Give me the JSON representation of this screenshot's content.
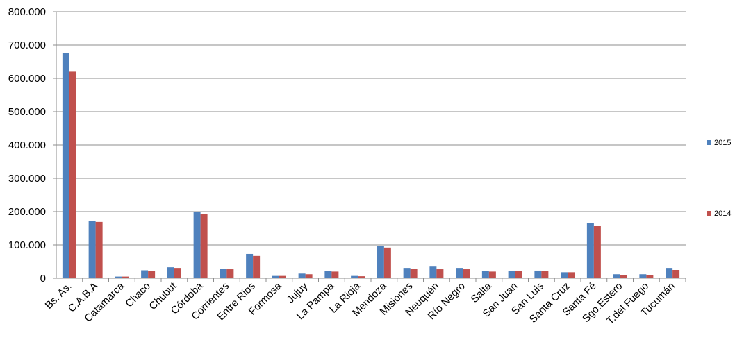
{
  "chart_data": {
    "type": "bar",
    "title": "",
    "xlabel": "",
    "ylabel": "",
    "ylim": [
      0,
      800000
    ],
    "y_ticks": [
      0,
      100000,
      200000,
      300000,
      400000,
      500000,
      600000,
      700000,
      800000
    ],
    "y_tick_labels": [
      "0",
      "100.000",
      "200.000",
      "300.000",
      "400.000",
      "500.000",
      "600.000",
      "700.000",
      "800.000"
    ],
    "grid": true,
    "legend_position": "right",
    "categories": [
      "Bs. As.",
      "C.A.B.A",
      "Catamarca",
      "Chaco",
      "Chubut",
      "Córdoba",
      "Corrientes",
      "Entre Rios",
      "Formosa",
      "Jujuy",
      "La Pampa",
      "La Rioja",
      "Mendoza",
      "Misiones",
      "Neuquén",
      "Río Negro",
      "Salta",
      "San Juan",
      "San Luis",
      "Santa Cruz",
      "Santa Fé",
      "Sgo.Estero",
      "T.del Fuego",
      "Tucumán"
    ],
    "series": [
      {
        "name": "2015",
        "color": "#4f81bd",
        "values": [
          677000,
          171000,
          5000,
          24000,
          33000,
          199000,
          29000,
          73000,
          7000,
          14000,
          22000,
          7000,
          96000,
          31000,
          35000,
          31000,
          22000,
          22000,
          23000,
          18000,
          165000,
          12000,
          12000,
          31000
        ]
      },
      {
        "name": "2014",
        "color": "#c0504d",
        "values": [
          620000,
          169000,
          5000,
          22000,
          31000,
          192000,
          27000,
          67000,
          7000,
          12000,
          20000,
          6000,
          92000,
          28000,
          27000,
          27000,
          20000,
          22000,
          21000,
          18000,
          157000,
          10000,
          10000,
          25000
        ]
      }
    ]
  }
}
